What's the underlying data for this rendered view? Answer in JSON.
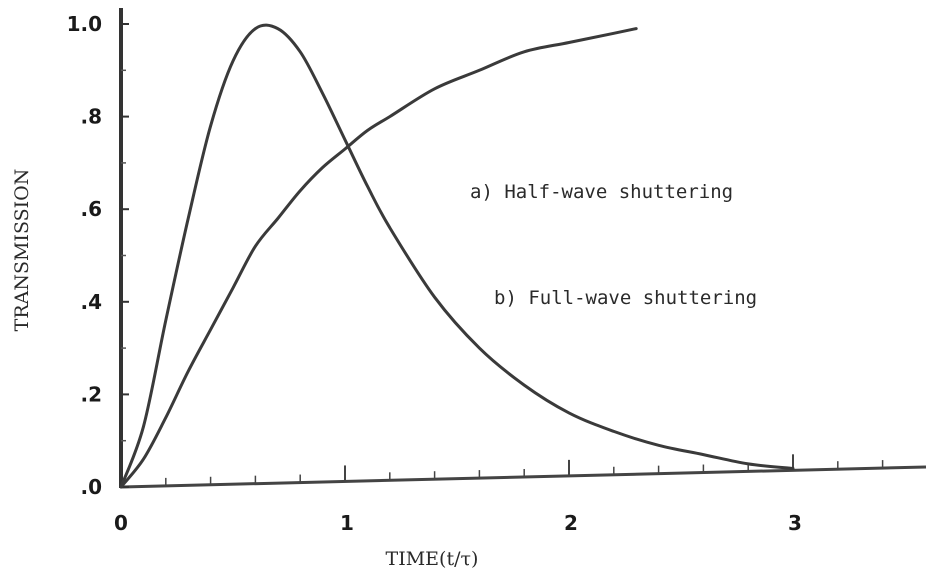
{
  "chart_data": {
    "type": "line",
    "xlabel": "TIME(t/τ)",
    "ylabel": "TRANSMISSION",
    "xlim": [
      0,
      3.6
    ],
    "ylim": [
      0,
      1.05
    ],
    "x_ticks": [
      {
        "value": 0,
        "label": "0"
      },
      {
        "value": 1,
        "label": "1"
      },
      {
        "value": 2,
        "label": "2"
      },
      {
        "value": 3,
        "label": "3"
      }
    ],
    "y_ticks": [
      {
        "value": 0,
        "label": ".0"
      },
      {
        "value": 0.2,
        "label": ".2"
      },
      {
        "value": 0.4,
        "label": ".4"
      },
      {
        "value": 0.6,
        "label": ".6"
      },
      {
        "value": 0.8,
        "label": ".8"
      },
      {
        "value": 1.0,
        "label": "1.0"
      }
    ],
    "series": [
      {
        "x": [
          0,
          0.1,
          0.2,
          0.3,
          0.4,
          0.5,
          0.6,
          0.7,
          0.8,
          0.9,
          1.0,
          1.1,
          1.2,
          1.4,
          1.6,
          1.8,
          2.0,
          2.2,
          2.4,
          2.6,
          2.8,
          3.0
        ],
        "y": [
          0,
          0.13,
          0.36,
          0.58,
          0.78,
          0.92,
          0.99,
          0.99,
          0.94,
          0.85,
          0.75,
          0.65,
          0.56,
          0.41,
          0.3,
          0.22,
          0.16,
          0.12,
          0.09,
          0.07,
          0.05,
          0.04
        ]
      },
      {
        "x": [
          0,
          0.1,
          0.2,
          0.3,
          0.4,
          0.5,
          0.6,
          0.7,
          0.8,
          0.9,
          1.0,
          1.1,
          1.2,
          1.4,
          1.6,
          1.8,
          2.0,
          2.2,
          2.3
        ],
        "y": [
          0,
          0.06,
          0.15,
          0.25,
          0.34,
          0.43,
          0.52,
          0.58,
          0.64,
          0.69,
          0.73,
          0.77,
          0.8,
          0.86,
          0.9,
          0.94,
          0.96,
          0.98,
          0.99
        ]
      }
    ],
    "annotations": [
      {
        "text": "a) Half-wave shuttering"
      },
      {
        "text": "b) Full-wave shuttering"
      }
    ]
  }
}
